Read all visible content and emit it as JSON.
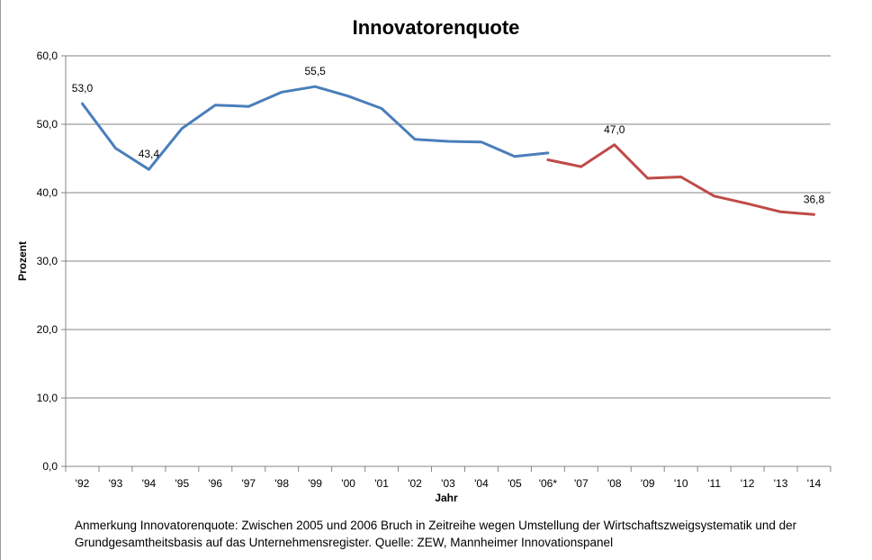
{
  "chart_data": {
    "type": "line",
    "title": "Innovatorenquote",
    "xlabel": "Jahr",
    "ylabel": "Prozent",
    "ylim": [
      0,
      60
    ],
    "yticks": [
      "0,0",
      "10,0",
      "20,0",
      "30,0",
      "40,0",
      "50,0",
      "60,0"
    ],
    "grid": true,
    "categories": [
      "'92",
      "'93",
      "'94",
      "'95",
      "'96",
      "'97",
      "'98",
      "'99",
      "'00",
      "'01",
      "'02",
      "'03",
      "'04",
      "'05",
      "'06*",
      "'07",
      "'08",
      "'09",
      "'10",
      "'11",
      "'12",
      "'13",
      "'14"
    ],
    "series": [
      {
        "color": "#4a7ebb",
        "values": [
          53.0,
          46.5,
          43.4,
          49.4,
          52.8,
          52.6,
          54.7,
          55.5,
          54.1,
          52.3,
          47.8,
          47.5,
          47.4,
          45.3,
          45.8,
          null,
          null,
          null,
          null,
          null,
          null,
          null,
          null
        ]
      },
      {
        "color": "#be4b48",
        "values": [
          null,
          null,
          null,
          null,
          null,
          null,
          null,
          null,
          null,
          null,
          null,
          null,
          null,
          null,
          44.8,
          43.8,
          47.0,
          42.1,
          42.3,
          39.5,
          38.4,
          37.2,
          36.8
        ]
      }
    ],
    "data_labels": [
      {
        "category": "'92",
        "text": "53,0"
      },
      {
        "category": "'94",
        "text": "43,4"
      },
      {
        "category": "'99",
        "text": "55,5"
      },
      {
        "category": "'08",
        "text": "47,0"
      },
      {
        "category": "'14",
        "text": "36,8"
      }
    ]
  },
  "note": {
    "line1": "Anmerkung Innovatorenquote: Zwischen 2005 und 2006 Bruch in Zeitreihe wegen Umstellung der Wirtschaftszweigsystematik und der",
    "line2": "Grundgesamtheitsbasis auf das Unternehmensregister. Quelle: ZEW, Mannheimer Innovationspanel"
  }
}
